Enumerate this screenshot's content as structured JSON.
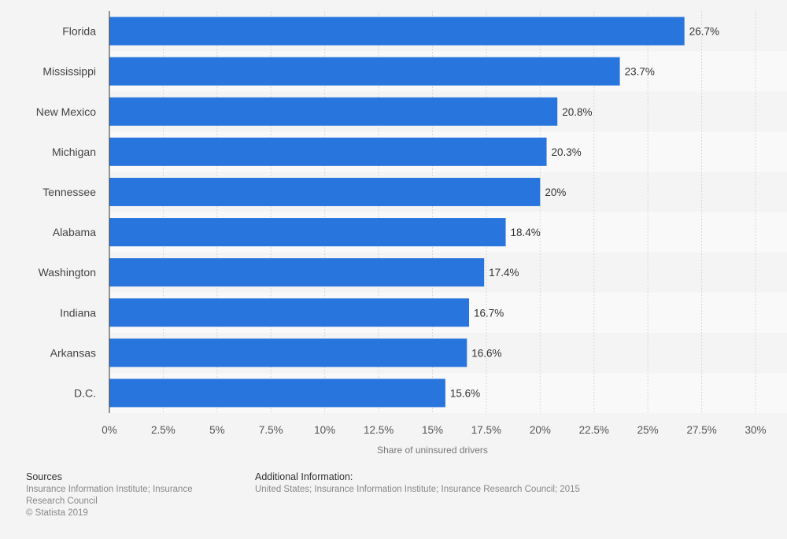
{
  "chart_data": {
    "type": "bar",
    "orientation": "horizontal",
    "categories": [
      "Florida",
      "Mississippi",
      "New Mexico",
      "Michigan",
      "Tennessee",
      "Alabama",
      "Washington",
      "Indiana",
      "Arkansas",
      "D.C."
    ],
    "values": [
      26.7,
      23.7,
      20.8,
      20.3,
      20,
      18.4,
      17.4,
      16.7,
      16.6,
      15.6
    ],
    "value_labels": [
      "26.7%",
      "23.7%",
      "20.8%",
      "20.3%",
      "20%",
      "18.4%",
      "17.4%",
      "16.7%",
      "16.6%",
      "15.6%"
    ],
    "xlabel": "Share of uninsured drivers",
    "ylabel": "",
    "xlim": [
      0,
      30
    ],
    "xticks": [
      0,
      2.5,
      5,
      7.5,
      10,
      12.5,
      15,
      17.5,
      20,
      22.5,
      25,
      27.5,
      30
    ],
    "xtick_labels": [
      "0%",
      "2.5%",
      "5%",
      "7.5%",
      "10%",
      "12.5%",
      "15%",
      "17.5%",
      "20%",
      "22.5%",
      "25%",
      "27.5%",
      "30%"
    ],
    "grid": true,
    "bar_color": "#2876dd"
  },
  "footer": {
    "sources_heading": "Sources",
    "sources_text": "Insurance Information Institute; Insurance Research Council",
    "copyright": "© Statista 2019",
    "additional_heading": "Additional Information:",
    "additional_text": "United States; Insurance Information Institute; Insurance Research Council; 2015"
  }
}
